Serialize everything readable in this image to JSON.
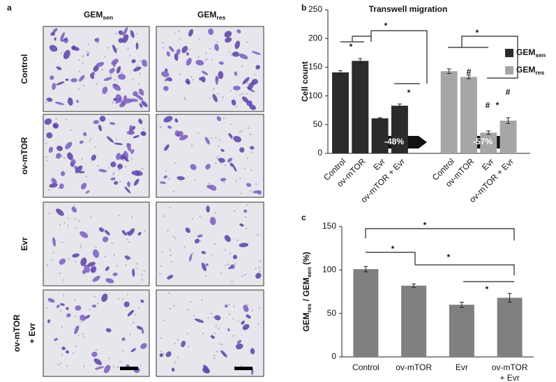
{
  "panel_a": {
    "letter": "a",
    "columns": [
      [
        "GEM",
        "sen"
      ],
      [
        "GEM",
        "res"
      ]
    ],
    "rows": [
      [
        "Control"
      ],
      [
        "ov-mTOR"
      ],
      [
        "Evr"
      ],
      [
        "ov-mTOR",
        "+ Evr"
      ]
    ]
  },
  "chart_data": [
    {
      "type": "bar",
      "letter": "b",
      "title": "Transwell migration",
      "y_label": "Cell count",
      "categories": [
        "Control",
        "ov-mTOR",
        "Evr",
        "ov-mTOR + Evr"
      ],
      "series": [
        {
          "name": "GEM",
          "name_sub": "sen",
          "color": "#2b2b2b",
          "values": [
            141,
            161,
            61,
            83
          ],
          "errors": [
            3,
            4,
            1,
            3
          ]
        },
        {
          "name": "GEM",
          "name_sub": "res",
          "color": "#a6a6a6",
          "values": [
            143,
            133,
            36,
            57
          ],
          "errors": [
            4,
            3,
            3,
            5
          ]
        }
      ],
      "ylim": [
        0,
        250
      ],
      "yticks": [
        0,
        50,
        100,
        150,
        200,
        250
      ],
      "annotations": [
        "*",
        "*",
        "*",
        "*",
        "*",
        "#",
        "#",
        "#",
        "-48%",
        "-57%"
      ]
    },
    {
      "type": "bar",
      "letter": "c",
      "y_label": [
        {
          "text": "GEM"
        },
        {
          "text": "res",
          "sub": true
        },
        {
          "text": " / GEM"
        },
        {
          "text": "sen",
          "sub": true
        },
        {
          "text": " (%)"
        }
      ],
      "categories": [
        [
          "Control"
        ],
        [
          "ov-mTOR"
        ],
        [
          "Evr"
        ],
        [
          "ov-mTOR",
          "+ Evr"
        ]
      ],
      "color": "#808080",
      "values": [
        101,
        82,
        60,
        68
      ],
      "errors": [
        3,
        2,
        3,
        5
      ],
      "ylim": [
        0,
        150
      ],
      "yticks": [
        0,
        50,
        100,
        150
      ],
      "annotations": [
        "*",
        "*",
        "*",
        "*"
      ]
    }
  ]
}
